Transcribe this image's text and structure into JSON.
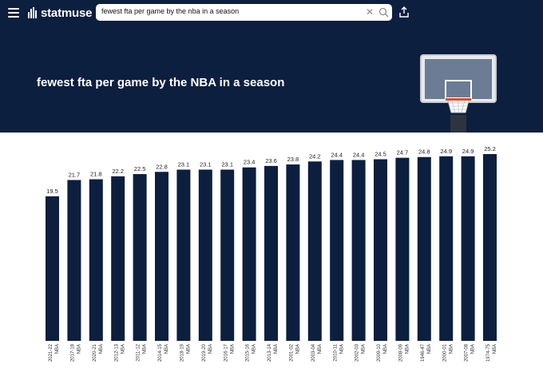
{
  "app": {
    "brand": "statmuse",
    "accent": "#0c1f3f"
  },
  "search": {
    "query": "fewest fta per game by the nba in a season",
    "clear_icon": "close-icon",
    "search_icon": "search-icon"
  },
  "header": {
    "title": "fewest fta per game by the NBA in a season",
    "share_icon": "share-icon",
    "menu_icon": "hamburger-menu-icon"
  },
  "chart_data": {
    "type": "bar",
    "categories": [
      "2021-22",
      "2017-18",
      "2020-21",
      "2012-13",
      "2011-12",
      "2014-15",
      "2018-19",
      "2019-20",
      "2016-17",
      "2015-16",
      "2013-14",
      "2001-02",
      "2003-04",
      "2010-11",
      "2002-03",
      "2009-10",
      "2008-09",
      "1946-47",
      "2000-01",
      "2007-08",
      "1974-75"
    ],
    "sublabel": "NBA",
    "values": [
      19.5,
      21.7,
      21.8,
      22.2,
      22.5,
      22.8,
      23.1,
      23.1,
      23.1,
      23.4,
      23.6,
      23.8,
      24.2,
      24.4,
      24.4,
      24.5,
      24.7,
      24.8,
      24.9,
      24.9,
      25.2
    ],
    "bar_color": "#0c1f3f",
    "ylim": [
      0,
      25.2
    ],
    "grid": false,
    "xlabel": "",
    "ylabel": ""
  }
}
